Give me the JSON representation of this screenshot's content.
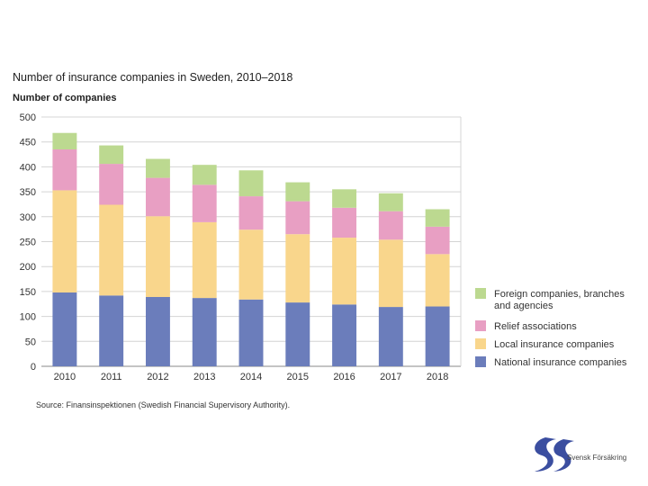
{
  "chart_data": {
    "type": "bar",
    "stacked": true,
    "title": "Number of insurance companies in Sweden, 2010–2018",
    "ylabel": "Number of companies",
    "xlabel": "",
    "ylim": [
      0,
      500
    ],
    "yticks": [
      0,
      50,
      100,
      150,
      200,
      250,
      300,
      350,
      400,
      450,
      500
    ],
    "grid": true,
    "legend_position": "right",
    "categories": [
      "2010",
      "2011",
      "2012",
      "2013",
      "2014",
      "2015",
      "2016",
      "2017",
      "2018"
    ],
    "series": [
      {
        "name": "National insurance companies",
        "color": "#6b7dbb",
        "values": [
          148,
          142,
          139,
          137,
          134,
          128,
          124,
          119,
          120
        ]
      },
      {
        "name": "Local insurance companies",
        "color": "#f9d68c",
        "values": [
          205,
          182,
          162,
          152,
          140,
          137,
          134,
          135,
          105
        ]
      },
      {
        "name": "Relief associations",
        "color": "#e89fc3",
        "values": [
          82,
          82,
          77,
          75,
          67,
          66,
          60,
          57,
          55
        ]
      },
      {
        "name": "Foreign companies, branches and agencies",
        "color": "#bcd990",
        "legend_lines": [
          "Foreign companies, branches",
          "and agencies"
        ],
        "values": [
          33,
          37,
          38,
          40,
          52,
          38,
          37,
          36,
          35
        ]
      }
    ],
    "source": "Source: Finansinspektionen (Swedish Financial Supervisory Authority)."
  },
  "logo": {
    "text": "Svensk Försäkring",
    "color": "#3b4ea0"
  }
}
